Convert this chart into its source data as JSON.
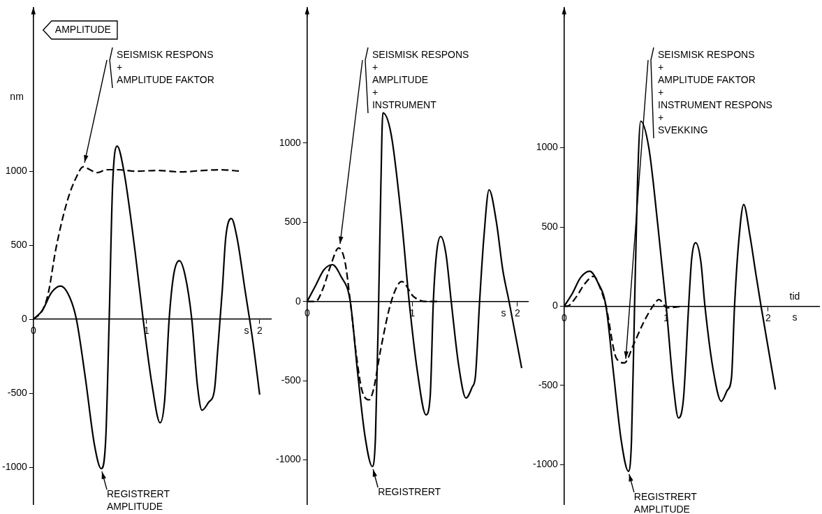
{
  "chart_data": [
    {
      "type": "line",
      "title": "AMPLITUDE",
      "ylabel": "nm",
      "xlabel": "s",
      "xlim": [
        0,
        2.1
      ],
      "ylim": [
        -1250,
        2100
      ],
      "xticks": [
        0,
        1,
        2
      ],
      "yticks": [
        -1000,
        -500,
        0,
        500,
        1000
      ],
      "series": [
        {
          "color": "#000000",
          "line_style": "solid",
          "x": [
            0,
            0.08,
            0.16,
            0.24,
            0.32,
            0.38,
            0.46,
            0.54,
            0.6,
            0.64,
            0.67,
            0.7,
            0.74,
            0.8,
            0.9,
            0.97,
            1.05,
            1.12,
            1.16,
            1.2,
            1.24,
            1.29,
            1.34,
            1.4,
            1.45,
            1.49,
            1.55,
            1.6,
            1.63,
            1.67,
            1.7,
            1.75,
            1.8,
            1.87,
            1.94,
            2.0
          ],
          "values": [
            0,
            60,
            180,
            224,
            150,
            0,
            -400,
            -850,
            -1010,
            -800,
            0,
            900,
            1170,
            1000,
            450,
            0,
            -450,
            -700,
            -550,
            0,
            300,
            395,
            300,
            0,
            -450,
            -615,
            -560,
            -480,
            -200,
            200,
            550,
            680,
            550,
            200,
            -150,
            -510
          ]
        },
        {
          "color": "#000000",
          "line_style": "dashed",
          "x": [
            0,
            0.08,
            0.13,
            0.2,
            0.3,
            0.38,
            0.44,
            0.5,
            0.56,
            0.65,
            0.75,
            0.9,
            1.1,
            1.3,
            1.5,
            1.65,
            1.83
          ],
          "values": [
            0,
            60,
            170,
            480,
            800,
            960,
            1030,
            1010,
            990,
            1010,
            1010,
            1000,
            1005,
            995,
            1005,
            1010,
            1000
          ]
        }
      ],
      "annotations": [
        {
          "text": "SEISMISK RESPONS\n+\nAMPLITUDE FAKTOR",
          "x": 0.44,
          "y": 1030
        },
        {
          "text": "REGISTRERT\nAMPLITUDE",
          "x": 0.6,
          "y": -1010
        }
      ]
    },
    {
      "type": "line",
      "xlabel": "s",
      "xlim": [
        0,
        2.1
      ],
      "ylim": [
        -1280,
        1850
      ],
      "xticks": [
        0,
        1,
        2
      ],
      "yticks": [
        -1000,
        -500,
        0,
        500,
        1000
      ],
      "series": [
        {
          "color": "#000000",
          "line_style": "solid",
          "x": [
            0,
            0.08,
            0.16,
            0.24,
            0.32,
            0.41,
            0.48,
            0.55,
            0.62,
            0.65,
            0.68,
            0.7,
            0.72,
            0.8,
            0.9,
            0.97,
            1.05,
            1.13,
            1.17,
            1.2,
            1.23,
            1.27,
            1.32,
            1.37,
            1.44,
            1.51,
            1.57,
            1.6,
            1.64,
            1.68,
            1.73,
            1.8,
            1.86,
            1.92,
            2.04
          ],
          "values": [
            0,
            100,
            200,
            232,
            160,
            0,
            -450,
            -850,
            -1042,
            -850,
            0,
            700,
            1190,
            1050,
            500,
            0,
            -450,
            -716,
            -600,
            0,
            300,
            410,
            300,
            0,
            -400,
            -610,
            -540,
            -474,
            0,
            400,
            705,
            500,
            200,
            0,
            -421
          ]
        },
        {
          "color": "#000000",
          "line_style": "dashed",
          "x": [
            0,
            0.08,
            0.15,
            0.22,
            0.3,
            0.36,
            0.41,
            0.47,
            0.52,
            0.59,
            0.63,
            0.7,
            0.8,
            0.9,
            1.01,
            1.13,
            1.25
          ],
          "values": [
            0,
            0,
            80,
            220,
            337,
            250,
            0,
            -350,
            -558,
            -621,
            -558,
            -300,
            0,
            126,
            32,
            0,
            0
          ]
        }
      ],
      "annotations": [
        {
          "text": "SEISMISK RESPONS\n+\nAMPLITUDE\n+\nINSTRUMENT",
          "x": 0.3,
          "y": 337
        },
        {
          "text": "REGISTRERT",
          "x": 0.62,
          "y": -1042
        }
      ]
    },
    {
      "type": "line",
      "xlabel": "s",
      "xlim": [
        0,
        2.5
      ],
      "ylim": [
        -1250,
        1880
      ],
      "xticks": [
        0,
        1,
        2
      ],
      "yticks": [
        -1000,
        -500,
        0,
        500,
        1000
      ],
      "series": [
        {
          "color": "#000000",
          "line_style": "solid",
          "x": [
            0,
            0.08,
            0.16,
            0.25,
            0.33,
            0.41,
            0.48,
            0.56,
            0.63,
            0.66,
            0.69,
            0.72,
            0.75,
            0.83,
            0.92,
            1.0,
            1.07,
            1.12,
            1.17,
            1.22,
            1.25,
            1.29,
            1.34,
            1.38,
            1.46,
            1.54,
            1.6,
            1.64,
            1.67,
            1.71,
            1.76,
            1.82,
            1.88,
            1.93,
            2.07
          ],
          "values": [
            0,
            80,
            180,
            221,
            150,
            0,
            -400,
            -850,
            -1042,
            -850,
            0,
            800,
            1168,
            1000,
            500,
            0,
            -500,
            -705,
            -580,
            0,
            300,
            400,
            280,
            0,
            -400,
            -600,
            -530,
            -453,
            0,
            400,
            642,
            450,
            200,
            0,
            -526
          ]
        },
        {
          "color": "#000000",
          "line_style": "dashed",
          "x": [
            0,
            0.03,
            0.12,
            0.2,
            0.29,
            0.35,
            0.41,
            0.51,
            0.59,
            0.68,
            0.78,
            0.87,
            0.93,
            1.01,
            1.16
          ],
          "values": [
            0,
            0,
            60,
            140,
            189,
            120,
            0,
            -326,
            -358,
            -242,
            -100,
            0,
            42,
            -10,
            0
          ]
        }
      ],
      "annotations": [
        {
          "text": "SEISMISK RESPONS\n+\nAMPLITUDE FAKTOR\n+\nINSTRUMENT RESPONS\n+\nSVEKKING",
          "x": 0.59,
          "y": -358
        },
        {
          "text": "REGISTRERT\nAMPLITUDE",
          "x": 0.63,
          "y": -1042
        },
        "tid"
      ]
    }
  ]
}
